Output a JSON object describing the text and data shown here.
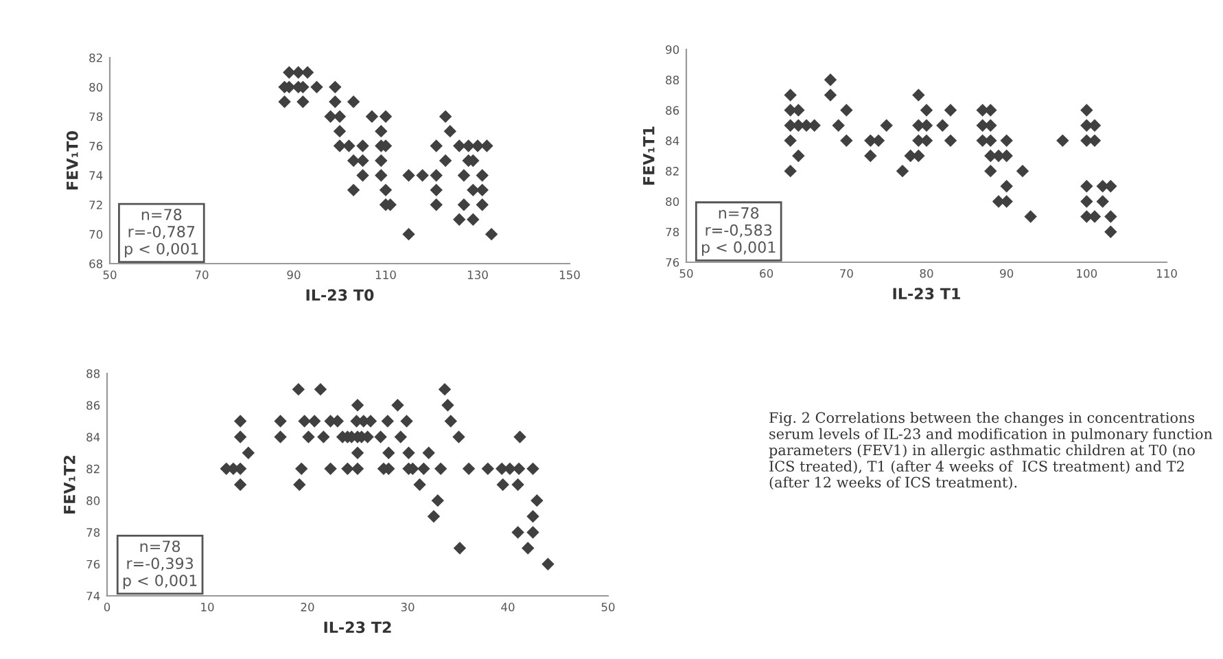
{
  "chart_data": [
    {
      "type": "scatter",
      "xlabel": "IL-23 T0",
      "ylabel": "FEV₁T0",
      "xlim": [
        50,
        150
      ],
      "xticks": [
        50,
        70,
        90,
        110,
        130,
        150
      ],
      "ylim": [
        68,
        82
      ],
      "yticks": [
        68,
        70,
        72,
        74,
        76,
        78,
        80,
        82
      ],
      "marker": "diamond",
      "grid": false,
      "annotations": [
        "n=78\nr=-0,787\np < 0,001"
      ],
      "series": [
        {
          "color": "#404040",
          "x": [
            89,
            91,
            93,
            88,
            89,
            91,
            92,
            95,
            99,
            88,
            92,
            99,
            103,
            98,
            100,
            107,
            110,
            123,
            100,
            109,
            124,
            100,
            102,
            105,
            109,
            110,
            121,
            126,
            128,
            130,
            132,
            103,
            105,
            109,
            123,
            128,
            129,
            105,
            109,
            115,
            118,
            121,
            127,
            131,
            103,
            110,
            121,
            129,
            131,
            110,
            111,
            121,
            127,
            131,
            126,
            129,
            115,
            133
          ],
          "values": [
            81,
            81,
            81,
            80,
            80,
            80,
            80,
            80,
            80,
            79,
            79,
            79,
            79,
            78,
            78,
            78,
            78,
            78,
            77,
            77,
            77,
            76,
            76,
            76,
            76,
            76,
            76,
            76,
            76,
            76,
            76,
            75,
            75,
            75,
            75,
            75,
            75,
            74,
            74,
            74,
            74,
            74,
            74,
            74,
            73,
            73,
            73,
            73,
            73,
            72,
            72,
            72,
            72,
            72,
            71,
            71,
            70,
            70
          ]
        }
      ]
    },
    {
      "type": "scatter",
      "xlabel": "IL-23 T1",
      "ylabel": "FEV₁T1",
      "xlim": [
        50,
        110
      ],
      "xticks": [
        50,
        60,
        70,
        80,
        90,
        100,
        110
      ],
      "ylim": [
        76,
        90
      ],
      "yticks": [
        76,
        78,
        80,
        82,
        84,
        86,
        88,
        90
      ],
      "marker": "diamond",
      "grid": false,
      "annotations": [
        "n=78\nr=-0,583\np < 0,001"
      ],
      "series": [
        {
          "color": "#404040",
          "x": [
            68,
            63,
            68,
            79,
            63,
            64,
            70,
            80,
            83,
            87,
            88,
            100,
            63,
            64,
            65,
            66,
            69,
            75,
            79,
            80,
            82,
            87,
            88,
            100,
            101,
            63,
            70,
            73,
            74,
            79,
            80,
            83,
            87,
            88,
            90,
            97,
            100,
            101,
            64,
            73,
            78,
            79,
            88,
            89,
            90,
            63,
            77,
            88,
            92,
            90,
            100,
            102,
            103,
            89,
            90,
            100,
            102,
            93,
            100,
            101,
            103,
            103
          ],
          "values": [
            88,
            87,
            87,
            87,
            86,
            86,
            86,
            86,
            86,
            86,
            86,
            86,
            85,
            85,
            85,
            85,
            85,
            85,
            85,
            85,
            85,
            85,
            85,
            85,
            85,
            84,
            84,
            84,
            84,
            84,
            84,
            84,
            84,
            84,
            84,
            84,
            84,
            84,
            83,
            83,
            83,
            83,
            83,
            83,
            83,
            82,
            82,
            82,
            82,
            81,
            81,
            81,
            81,
            80,
            80,
            80,
            80,
            79,
            79,
            79,
            79,
            78
          ]
        }
      ]
    },
    {
      "type": "scatter",
      "xlabel": "IL-23 T2",
      "ylabel": "FEV₁T2",
      "xlim": [
        0,
        50
      ],
      "xticks": [
        0,
        10,
        20,
        30,
        40,
        50
      ],
      "ylim": [
        74,
        88
      ],
      "yticks": [
        74,
        76,
        78,
        80,
        82,
        84,
        86,
        88
      ],
      "marker": "diamond",
      "grid": false,
      "annotations": [
        "n=78\nr=-0,393\np < 0,001"
      ],
      "series": [
        {
          "color": "#404040",
          "x": [
            19.1,
            21.3,
            33.7,
            25,
            29,
            34,
            13.3,
            17.3,
            19.7,
            20.7,
            22.3,
            23,
            24.9,
            25.6,
            26.3,
            28,
            29.9,
            34.3,
            13.3,
            17.3,
            20.1,
            21.6,
            23.5,
            24,
            24.4,
            25,
            25.4,
            26,
            27.3,
            29.3,
            35.1,
            41.2,
            14.1,
            25,
            28.1,
            30.1,
            32.1,
            11.9,
            12.6,
            13.3,
            19.4,
            22.3,
            24,
            25,
            27.6,
            28.1,
            30.1,
            30.5,
            31.6,
            33.3,
            36.1,
            38,
            39.4,
            40.2,
            41.1,
            42.5,
            13.3,
            19.2,
            31.2,
            39.5,
            41,
            33,
            42.9,
            32.6,
            42.5,
            41,
            42.5,
            35.2,
            42,
            44
          ],
          "values": [
            87,
            87,
            87,
            86,
            86,
            86,
            85,
            85,
            85,
            85,
            85,
            85,
            85,
            85,
            85,
            85,
            85,
            85,
            84,
            84,
            84,
            84,
            84,
            84,
            84,
            84,
            84,
            84,
            84,
            84,
            84,
            84,
            83,
            83,
            83,
            83,
            83,
            82,
            82,
            82,
            82,
            82,
            82,
            82,
            82,
            82,
            82,
            82,
            82,
            82,
            82,
            82,
            82,
            82,
            82,
            82,
            81,
            81,
            81,
            81,
            81,
            80,
            80,
            79,
            79,
            78,
            78,
            77,
            77,
            76
          ]
        }
      ]
    },
    {
      "type": "other",
      "annotations": [
        "Fig. 2 Correlations between the changes in concentrations serum levels of IL-23 and modification in pulmonary function parameters (FEV1) in allergic asthmatic children at T0 (no ICS treated), T1 (after 4 weeks of  ICS treatment) and T2 (after 12 weeks of ICS treatment)."
      ]
    }
  ]
}
